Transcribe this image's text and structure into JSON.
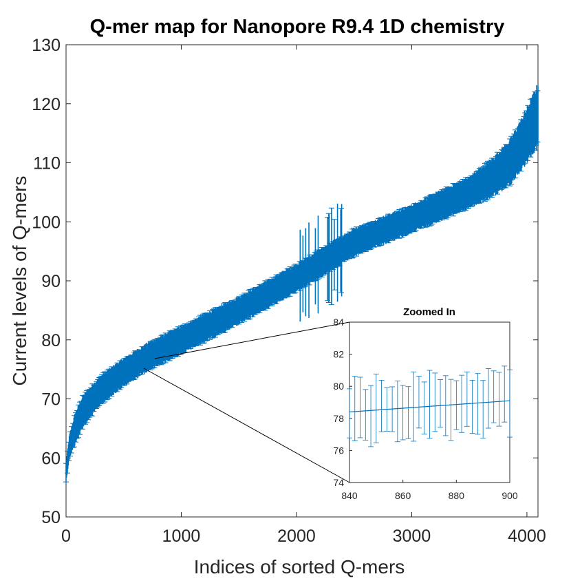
{
  "chart_data": [
    {
      "type": "errorbar",
      "title": "Q-mer map for Nanopore R9.4 1D chemistry",
      "xlabel": "Indices of sorted Q-mers",
      "ylabel": "Current levels of Q-mers",
      "xlim": [
        0,
        4096
      ],
      "ylim": [
        50,
        130
      ],
      "xticks": [
        0,
        1000,
        2000,
        3000,
        4000
      ],
      "yticks": [
        50,
        60,
        70,
        80,
        90,
        100,
        110,
        120,
        130
      ],
      "color": "#0072BD",
      "curve_x": [
        0,
        30,
        80,
        150,
        300,
        500,
        700,
        1000,
        1500,
        2000,
        2500,
        3000,
        3500,
        3700,
        3850,
        3950,
        4050,
        4096
      ],
      "curve_y": [
        57.5,
        62,
        65,
        68,
        71.5,
        74.5,
        77,
        80,
        85,
        90.5,
        96.5,
        100.5,
        105,
        107.5,
        110,
        113,
        116.5,
        118
      ],
      "error_half_width": [
        1.5,
        1.8,
        2.5,
        2.5,
        2.3,
        2.2,
        2.2,
        2.2,
        2.2,
        2.2,
        2.2,
        2.2,
        2.5,
        3,
        3.5,
        4,
        4.5,
        5
      ],
      "outlier_region": {
        "x_range": [
          2020,
          2400
        ],
        "spread": 7
      }
    },
    {
      "type": "errorbar",
      "title": "Zoomed In",
      "xlim": [
        840,
        900
      ],
      "ylim": [
        74,
        84
      ],
      "xticks": [
        840,
        860,
        880,
        900
      ],
      "yticks": [
        74,
        76,
        78,
        80,
        82,
        84
      ],
      "line": {
        "x": [
          840,
          900
        ],
        "y": [
          78.4,
          79.1
        ]
      },
      "errorbar_step": 2,
      "error_half_width": 1.8,
      "error_jitter": 0.5
    }
  ]
}
